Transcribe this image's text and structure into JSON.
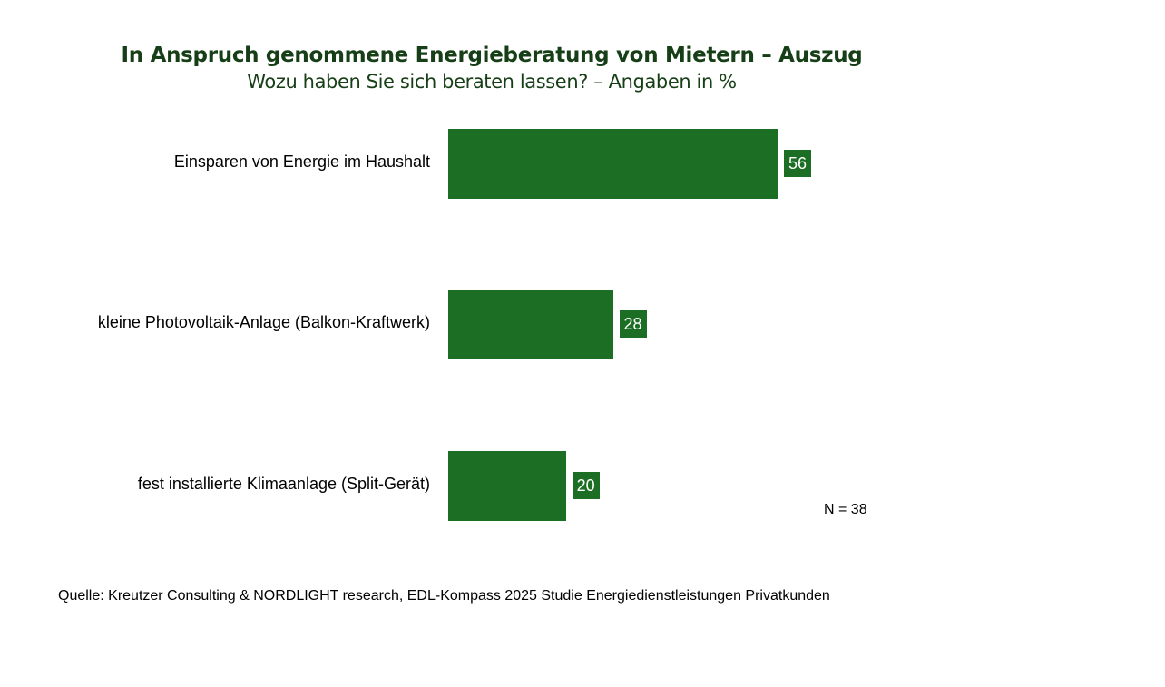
{
  "chart_data": {
    "type": "bar",
    "orientation": "horizontal",
    "title": "In Anspruch genommene Energieberatung von Mietern – Auszug",
    "subtitle": "Wozu haben Sie sich beraten lassen? – Angaben in %",
    "categories": [
      "Einsparen von Energie im Haushalt",
      "kleine Photovoltaik-Anlage (Balkon-Kraftwerk)",
      "fest installierte Klimaanlage (Split-Gerät)"
    ],
    "values": [
      56,
      28,
      20
    ],
    "data_labels": [
      "56",
      "28",
      "20"
    ],
    "grid": false,
    "bar_color": "#1b6e23",
    "title_color": "#173f17"
  },
  "sample_size": "N = 38",
  "source": "Quelle: Kreutzer Consulting & NORDLIGHT research, EDL-Kompass 2025 Studie Energiedienstleistungen Privatkunden"
}
